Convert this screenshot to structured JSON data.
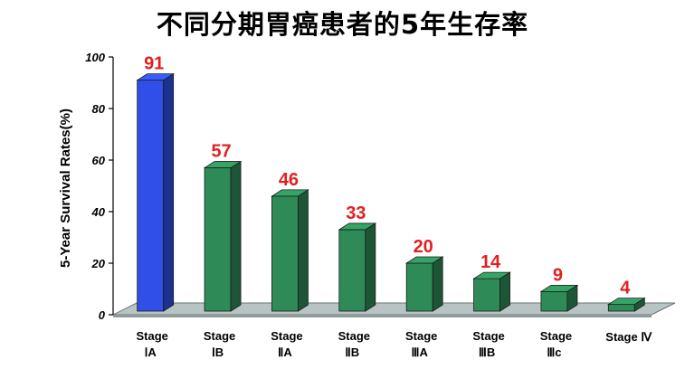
{
  "chart_data": {
    "type": "bar",
    "title": "不同分期胃癌患者的5年生存率",
    "ylabel": "5-Year Survival Rates(%)",
    "xlabel": "",
    "ylim": [
      0,
      100
    ],
    "yticks": [
      0,
      20,
      40,
      60,
      80,
      100
    ],
    "categories": [
      {
        "line1": "Stage",
        "line2": "ⅠA"
      },
      {
        "line1": "Stage",
        "line2": "ⅠB"
      },
      {
        "line1": "Stage",
        "line2": "ⅡA"
      },
      {
        "line1": "Stage",
        "line2": "ⅡB"
      },
      {
        "line1": "Stage",
        "line2": "ⅢA"
      },
      {
        "line1": "Stage",
        "line2": "ⅢB"
      },
      {
        "line1": "Stage",
        "line2": "Ⅲc"
      },
      {
        "line1": "Stage Ⅳ",
        "line2": ""
      }
    ],
    "values": [
      91,
      57,
      46,
      33,
      20,
      14,
      9,
      4
    ],
    "bar_colors": [
      "#2f4fe8",
      "#2e8b57",
      "#2e8b57",
      "#2e8b57",
      "#2e8b57",
      "#2e8b57",
      "#2e8b57",
      "#2e8b57"
    ],
    "value_label_color": "#e02020",
    "floor_color": "#b8c4c4",
    "grid": false,
    "legend": "none"
  }
}
